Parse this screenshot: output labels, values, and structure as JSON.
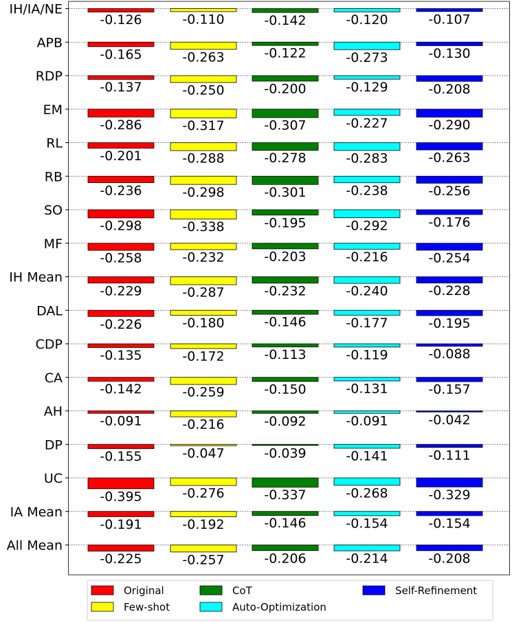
{
  "chart_data": {
    "type": "bar",
    "orientation": "horizontal-rows",
    "legend_placement": "bottom-center",
    "grid": false,
    "categories": [
      "IH/IA/NE",
      "APB",
      "RDP",
      "EM",
      "RL",
      "RB",
      "SO",
      "MF",
      "IH Mean",
      "DAL",
      "CDP",
      "CA",
      "AH",
      "DP",
      "UC",
      "IA Mean",
      "All Mean"
    ],
    "series": [
      {
        "name": "Original",
        "color": "#ff0000",
        "values": [
          -0.126,
          -0.165,
          -0.137,
          -0.286,
          -0.201,
          -0.236,
          -0.298,
          -0.258,
          -0.229,
          -0.226,
          -0.135,
          -0.142,
          -0.091,
          -0.155,
          -0.395,
          -0.191,
          -0.225
        ]
      },
      {
        "name": "Few-shot",
        "color": "#ffff00",
        "values": [
          -0.11,
          -0.263,
          -0.25,
          -0.317,
          -0.288,
          -0.298,
          -0.338,
          -0.232,
          -0.287,
          -0.18,
          -0.172,
          -0.259,
          -0.216,
          -0.047,
          -0.276,
          -0.192,
          -0.257
        ]
      },
      {
        "name": "CoT",
        "color": "#008000",
        "values": [
          -0.142,
          -0.122,
          -0.2,
          -0.307,
          -0.278,
          -0.301,
          -0.195,
          -0.203,
          -0.232,
          -0.146,
          -0.113,
          -0.15,
          -0.092,
          -0.039,
          -0.337,
          -0.146,
          -0.206
        ]
      },
      {
        "name": "Auto-Optimization",
        "color": "#00ffff",
        "values": [
          -0.12,
          -0.273,
          -0.129,
          -0.227,
          -0.283,
          -0.238,
          -0.292,
          -0.216,
          -0.24,
          -0.177,
          -0.119,
          -0.131,
          -0.091,
          -0.141,
          -0.268,
          -0.154,
          -0.214
        ]
      },
      {
        "name": "Self-Refinement",
        "color": "#0000ff",
        "values": [
          -0.107,
          -0.13,
          -0.208,
          -0.29,
          -0.263,
          -0.256,
          -0.176,
          -0.254,
          -0.228,
          -0.195,
          -0.088,
          -0.157,
          -0.042,
          -0.111,
          -0.329,
          -0.154,
          -0.208
        ]
      }
    ]
  }
}
